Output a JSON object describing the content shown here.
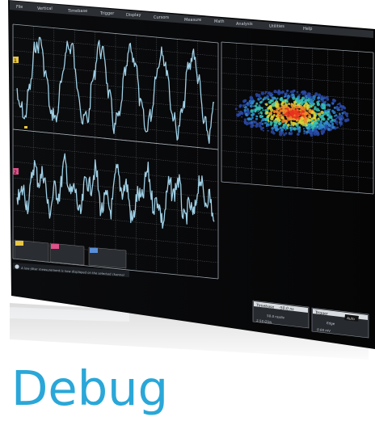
{
  "menu_bar": {
    "items": [
      "File",
      "Vertical",
      "Timebase",
      "Trigger",
      "Display",
      "Cursors",
      "Measure",
      "Math",
      "Analysis",
      "Utilities",
      "Help"
    ]
  },
  "channels": {
    "ch1_marker": "1",
    "ch2_marker": "2",
    "ch1_color": "#e8c640",
    "ch2_color": "#e0508a",
    "trace_color": "#9fd0e6"
  },
  "heatmap": {
    "palette": [
      "#2a4aa8",
      "#2f86cf",
      "#38c2b4",
      "#d9d23a",
      "#f08a2a",
      "#e8321e"
    ]
  },
  "status": {
    "message": "A low-jitter measurement is now displayed on the selected channel"
  },
  "timebase_panel": {
    "title": "Timebase",
    "value": "-50.0 ns",
    "row1": "50.0 ns/div",
    "row2": "2.50 GS/s"
  },
  "trigger_panel": {
    "title": "Trigger",
    "mode": "Auto",
    "row1": "Edge",
    "row2": "0.00 mV"
  },
  "brand": {
    "wordmark": "Debug",
    "color": "#2aa7d8"
  }
}
